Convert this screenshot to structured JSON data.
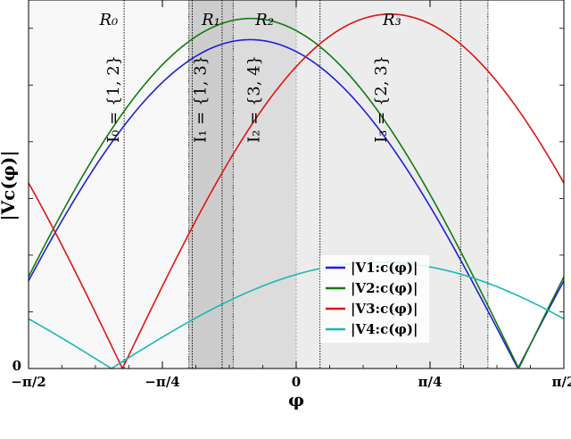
{
  "chart_data": {
    "type": "line",
    "title": "",
    "xlabel": "φ",
    "ylabel": "|Vc(φ)|",
    "xlim": [
      -1.5708,
      1.5708
    ],
    "ylim": [
      0,
      2.6
    ],
    "x_ticks": [
      {
        "value": -1.5708,
        "label": "−π/2"
      },
      {
        "value": -0.7854,
        "label": "−π/4"
      },
      {
        "value": 0,
        "label": "0"
      },
      {
        "value": 0.7854,
        "label": "π/4"
      },
      {
        "value": 1.5708,
        "label": "π/2"
      }
    ],
    "y_ticks": [
      {
        "value": 0,
        "label": "0"
      }
    ],
    "regions": [
      {
        "name": "R₀",
        "from": -1.5708,
        "to": -0.63,
        "shade": "#f8f8f8"
      },
      {
        "name": "R₁",
        "from": -0.63,
        "to": -0.37,
        "shade": "#cdcdcd"
      },
      {
        "name": "R₂",
        "from": -0.37,
        "to": 0.0,
        "shade": "#dcdcdc"
      },
      {
        "name": "R₃",
        "from": 0.0,
        "to": 1.125,
        "shade": "#ececec"
      }
    ],
    "intervals": [
      {
        "label": "I₀ = {1, 2}",
        "x": -1.01
      },
      {
        "label": "I₁ = {1, 3}",
        "x": -0.5
      },
      {
        "label": "I₂ = {3, 4}",
        "x": -0.185
      },
      {
        "label": "I₃ = {2, 3}",
        "x": 0.56
      }
    ],
    "breakpoints": [
      -1.01,
      -0.63,
      -0.61,
      -0.435,
      -0.37,
      0.14,
      0.965,
      1.125
    ],
    "series": [
      {
        "name": "|V1:c(φ)|",
        "color": "#1f1fd8",
        "amplitude": 2.32,
        "phase": -0.27
      },
      {
        "name": "|V2:c(φ)|",
        "color": "#127a12",
        "amplitude": 2.47,
        "phase": -0.265
      },
      {
        "name": "|V3:c(φ)|",
        "color": "#e01414",
        "amplitude": 2.5,
        "phase": 0.551
      },
      {
        "name": "|V4:c(φ)|",
        "color": "#18b8b8",
        "amplitude": 0.75,
        "phase": 0.486
      }
    ],
    "legend_position": "lower-right",
    "grid": false
  }
}
